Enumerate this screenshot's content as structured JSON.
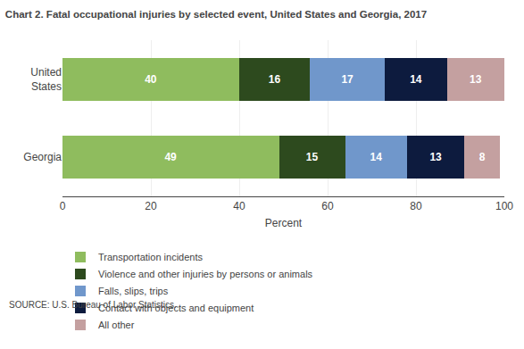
{
  "chart_data": {
    "type": "bar",
    "orientation": "horizontal",
    "stacked": true,
    "title": "Chart 2. Fatal occupational injuries by selected event, United States and Georgia, 2017",
    "categories": [
      "United\nStates",
      "Georgia"
    ],
    "series": [
      {
        "name": "Transportation incidents",
        "values": [
          40,
          49
        ],
        "color": "#8fbc5e"
      },
      {
        "name": "Violence and other injuries by persons or animals",
        "values": [
          16,
          15
        ],
        "color": "#2d4a1e"
      },
      {
        "name": "Falls, slips, trips",
        "values": [
          17,
          14
        ],
        "color": "#7097cb"
      },
      {
        "name": "Contact with objects and equipment",
        "values": [
          14,
          13
        ],
        "color": "#0d1b3e"
      },
      {
        "name": "All other",
        "values": [
          13,
          8
        ],
        "color": "#c4a0a0"
      }
    ],
    "xlabel": "Percent",
    "xlim": [
      0,
      100
    ],
    "xticks": [
      0,
      20,
      40,
      60,
      80,
      100
    ],
    "grid": true,
    "data_labels": true,
    "legend": "bottom",
    "source": "SOURCE: U.S. Bureau of Labor Statistics."
  }
}
